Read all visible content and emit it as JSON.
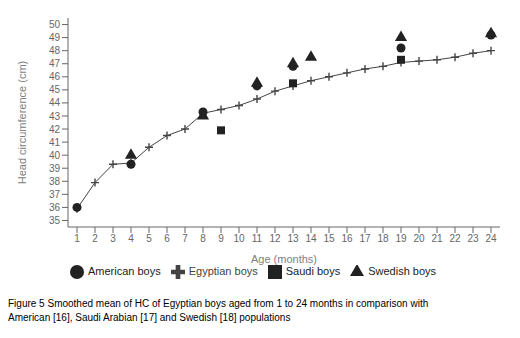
{
  "chart_data": {
    "type": "line",
    "xlabel": "Age (months)",
    "ylabel": "Head circumference (cm)",
    "xlim": [
      0.5,
      24.5
    ],
    "xticks": [
      1,
      2,
      3,
      4,
      5,
      6,
      7,
      8,
      9,
      10,
      11,
      12,
      13,
      14,
      15,
      16,
      17,
      18,
      19,
      20,
      21,
      22,
      23,
      24
    ],
    "ylim": [
      34.5,
      50.5
    ],
    "yticks": [
      35,
      36,
      37,
      38,
      39,
      40,
      41,
      42,
      43,
      44,
      45,
      46,
      47,
      48,
      49,
      50
    ],
    "grid": false,
    "legend": "bottom",
    "annotations": [
      "Figure 5 Smoothed mean of HC of Egyptian boys aged from 1 to 24 months in comparison with",
      "American [16], Saudi Arabian [17] and Swedish [18] populations"
    ],
    "series": [
      {
        "name": "Egyptian boys",
        "type": "line",
        "marker": "plus",
        "color": "#444444",
        "x": [
          1,
          2,
          3,
          4,
          5,
          6,
          7,
          8,
          9,
          10,
          11,
          12,
          13,
          14,
          15,
          16,
          17,
          18,
          19,
          20,
          21,
          22,
          23,
          24
        ],
        "values": [
          35.9,
          37.9,
          39.3,
          39.4,
          40.6,
          41.5,
          42.0,
          43.2,
          43.5,
          43.8,
          44.3,
          44.9,
          45.3,
          45.7,
          46.0,
          46.3,
          46.6,
          46.8,
          47.1,
          47.2,
          47.3,
          47.5,
          47.8,
          48.0
        ]
      },
      {
        "name": "Saudi boys",
        "type": "scatter",
        "marker": "square",
        "color": "#222222",
        "x": [
          9,
          13,
          19
        ],
        "values": [
          41.9,
          45.5,
          47.3
        ]
      },
      {
        "name": "Swedish boys",
        "type": "scatter",
        "marker": "triangle",
        "color": "#222222",
        "x": [
          4,
          8,
          11,
          13,
          14,
          19,
          24
        ],
        "values": [
          40.0,
          43.0,
          45.5,
          47.0,
          47.5,
          49.0,
          49.3
        ]
      },
      {
        "name": "American boys",
        "type": "scatter",
        "marker": "circle",
        "color": "#222222",
        "x": [
          1,
          4,
          8,
          11,
          13,
          19,
          24
        ],
        "values": [
          36.0,
          39.3,
          43.3,
          45.3,
          46.8,
          48.2,
          49.2
        ]
      }
    ]
  }
}
